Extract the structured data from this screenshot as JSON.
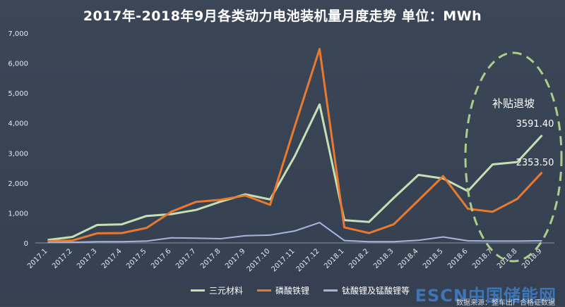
{
  "title": "2017年-2018年9月各类动力电池装机量月度走势 单位：MWh",
  "chart_data": {
    "type": "line",
    "title": "2017年-2018年9月各类动力电池装机量月度走势 单位：MWh",
    "categories": [
      "2017.1",
      "2017.2",
      "2017.3",
      "2017.4",
      "2017.5",
      "2017.6",
      "2017.7",
      "2017.8",
      "2017.9",
      "2017.10",
      "2017.11",
      "2017.12",
      "2018.1",
      "2018.2",
      "2018.3",
      "2018.4",
      "2018.5",
      "2018.6",
      "2018.7",
      "2018.8",
      "2018.9"
    ],
    "ylim": [
      0,
      7000
    ],
    "yticks": [
      "0",
      "1,000",
      "2,000",
      "3,000",
      "4,000",
      "5,000",
      "6,000",
      "7,000"
    ],
    "series": [
      {
        "name": "三元材料",
        "color": "#c5e0b3",
        "values": [
          100,
          200,
          600,
          620,
          900,
          960,
          1100,
          1380,
          1620,
          1450,
          2900,
          4620,
          760,
          700,
          1500,
          2270,
          2150,
          1730,
          2620,
          2700,
          3591.4
        ]
      },
      {
        "name": "磷酸铁锂",
        "color": "#e9792e",
        "values": [
          60,
          80,
          320,
          330,
          500,
          1040,
          1370,
          1440,
          1580,
          1270,
          3900,
          6470,
          520,
          330,
          620,
          1420,
          2230,
          1140,
          1040,
          1470,
          2353.5
        ]
      },
      {
        "name": "钛酸锂及锰酸锂等",
        "color": "#a7b4e0",
        "values": [
          20,
          20,
          40,
          40,
          60,
          170,
          160,
          140,
          240,
          260,
          400,
          680,
          80,
          40,
          40,
          90,
          200,
          70,
          60,
          60,
          70
        ]
      }
    ],
    "data_labels": [
      "3591.40",
      "2353.50"
    ],
    "annotation": "补贴退坡",
    "legend_position": "bottom"
  },
  "watermark": "ESCN中国储能网",
  "source": "数据来源：整车出厂合格证数据"
}
